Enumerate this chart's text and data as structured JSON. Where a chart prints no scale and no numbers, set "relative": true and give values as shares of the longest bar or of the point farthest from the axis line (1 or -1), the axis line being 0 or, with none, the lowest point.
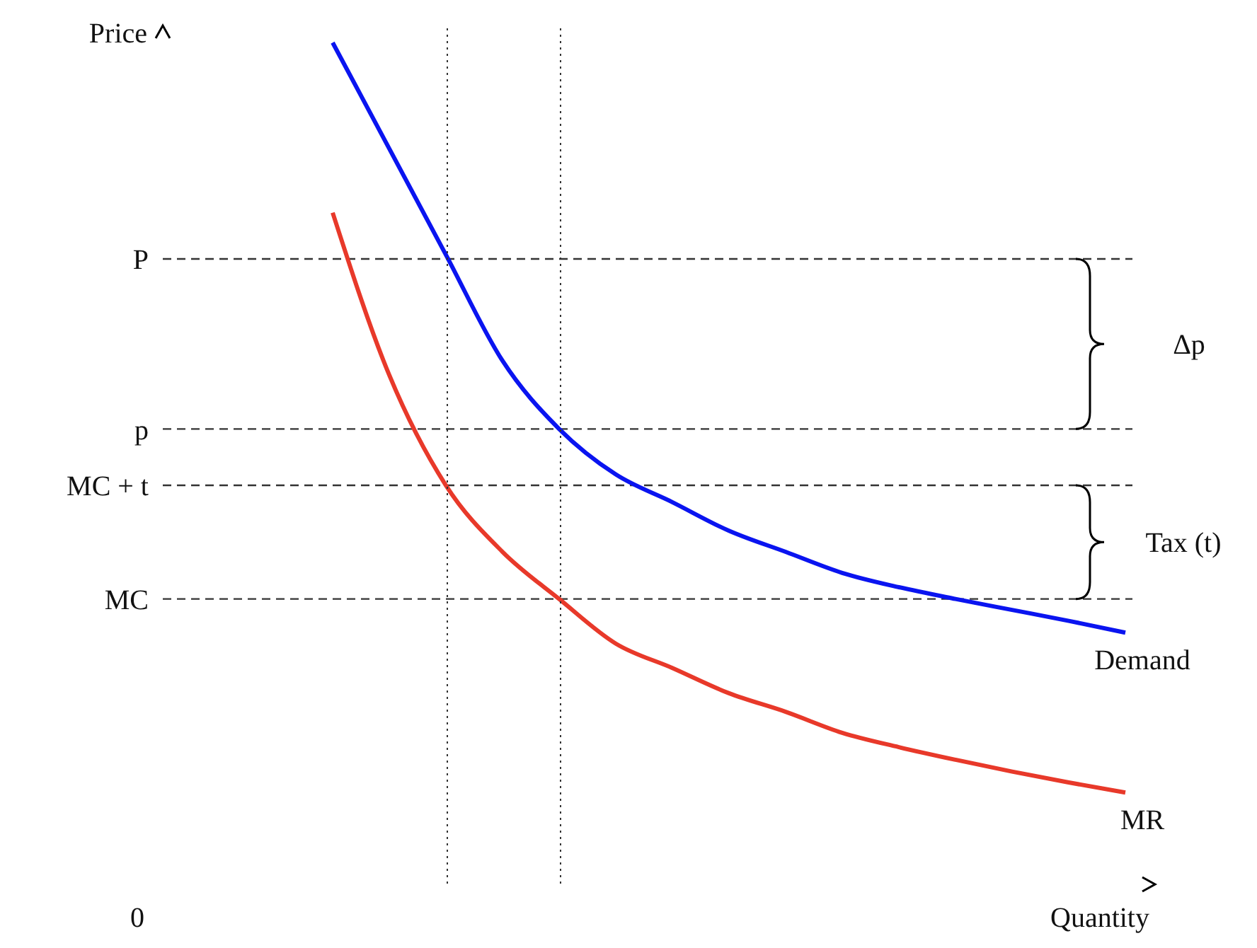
{
  "chart_data": {
    "type": "line",
    "relative": true,
    "xlabel": "Quantity",
    "categories": [
      null,
      null,
      null,
      null,
      null,
      null,
      null,
      null,
      null,
      null,
      null,
      null,
      null,
      null,
      null
    ],
    "series": [
      {
        "name": "Demand",
        "color": "#0a14f0",
        "values": [
          1,
          0.874,
          0.748,
          0.622,
          0.541,
          0.487,
          0.454,
          0.42,
          0.395,
          0.37,
          0.353,
          0.339,
          0.326,
          0.313,
          0.299
        ]
      },
      {
        "name": "MR",
        "color": "#e8392a",
        "values": [
          0.798,
          0.605,
          0.474,
          0.395,
          0.339,
          0.286,
          0.257,
          0.227,
          0.205,
          0.18,
          0.163,
          0.148,
          0.134,
          0.121,
          0.109
        ]
      }
    ],
    "ref_lines": [
      {
        "axis": "y",
        "value": 0.743,
        "label": "P",
        "line_style": "dashed"
      },
      {
        "axis": "y",
        "value": 0.541,
        "label": "p",
        "line_style": "dashed"
      },
      {
        "axis": "y",
        "value": 0.474,
        "label": "MC + t",
        "line_style": "dashed"
      },
      {
        "axis": "y",
        "value": 0.339,
        "label": "MC",
        "line_style": "dashed"
      }
    ],
    "annotations": [
      "Δp",
      "Tax (t)",
      "0",
      "Price"
    ],
    "legend": false,
    "grid": false,
    "marker": "none",
    "line_style": "solid"
  }
}
